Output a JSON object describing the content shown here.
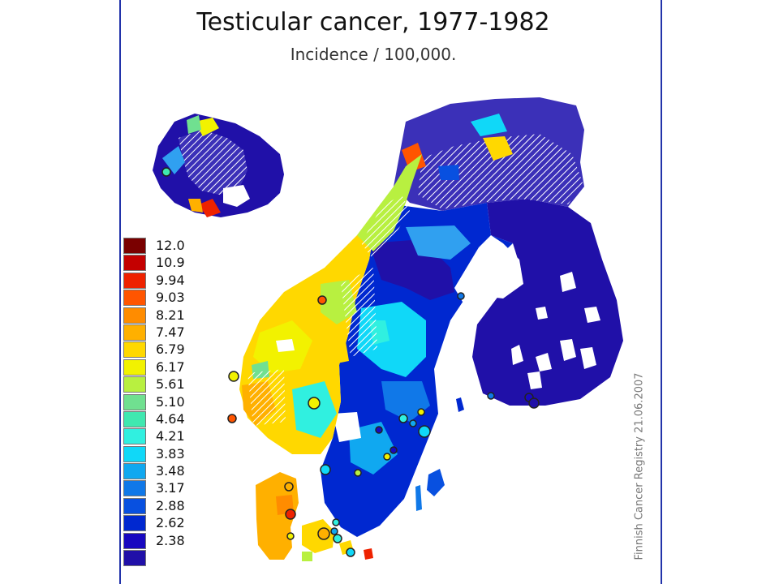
{
  "title": "Testicular cancer, 1977-1982",
  "subtitle": "Incidence / 100,000.",
  "credit": "Finnish Cancer Registry 21.06.2007",
  "legend": [
    {
      "label": "12.0",
      "color": "#7a0000"
    },
    {
      "label": "10.9",
      "color": "#c40000"
    },
    {
      "label": "9.94",
      "color": "#ee2200"
    },
    {
      "label": "9.03",
      "color": "#ff5500"
    },
    {
      "label": "8.21",
      "color": "#ff8c00"
    },
    {
      "label": "7.47",
      "color": "#ffb000"
    },
    {
      "label": "6.79",
      "color": "#ffd800"
    },
    {
      "label": "6.17",
      "color": "#f2f200"
    },
    {
      "label": "5.61",
      "color": "#b8f040"
    },
    {
      "label": "5.10",
      "color": "#70e090"
    },
    {
      "label": "4.64",
      "color": "#40e8b0"
    },
    {
      "label": "4.21",
      "color": "#30f0e0"
    },
    {
      "label": "3.83",
      "color": "#10d8f8"
    },
    {
      "label": "3.48",
      "color": "#10a8f0"
    },
    {
      "label": "3.17",
      "color": "#1078e8"
    },
    {
      "label": "2.88",
      "color": "#0850e0"
    },
    {
      "label": "2.62",
      "color": "#0028d0"
    },
    {
      "label": "2.38",
      "color": "#1808c0"
    },
    {
      "label": "",
      "color": "#2010a8"
    }
  ]
}
